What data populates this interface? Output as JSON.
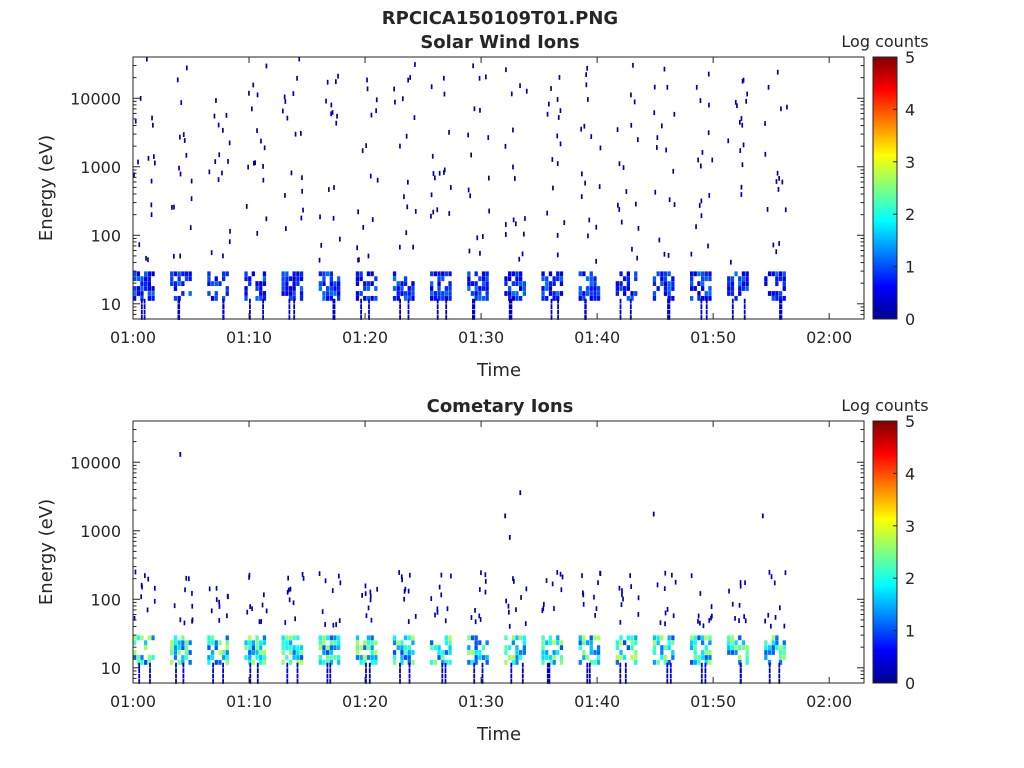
{
  "figure": {
    "title": "RPCICA150109T01.PNG"
  },
  "chart_data": [
    {
      "type": "heatmap",
      "title": "Solar Wind Ions",
      "xlabel": "Time",
      "ylabel": "Energy (eV)",
      "x_ticks": [
        "01:00",
        "01:10",
        "01:20",
        "01:30",
        "01:40",
        "01:50",
        "02:00"
      ],
      "x_tick_minutes": [
        0,
        10,
        20,
        30,
        40,
        50,
        60
      ],
      "xlim_minutes": [
        0,
        63
      ],
      "y_scale": "log",
      "y_ticks": [
        "10",
        "100",
        "1000",
        "10000"
      ],
      "y_tick_values": [
        10,
        100,
        1000,
        10000
      ],
      "ylim": [
        6,
        40000
      ],
      "colorbar": {
        "label": "Log counts",
        "ticks": [
          "0",
          "1",
          "2",
          "3",
          "4",
          "5"
        ],
        "range": [
          0,
          5
        ],
        "colormap": "jet"
      },
      "sweep_start_minutes": [
        0,
        3.2,
        6.4,
        9.6,
        12.8,
        16,
        19.2,
        22.4,
        25.6,
        28.8,
        32,
        35.2,
        38.4,
        41.6,
        44.8,
        48,
        51.2,
        54.4
      ],
      "sweep_duration_minutes": 1.9,
      "low_band_energy_ev": [
        12,
        30
      ],
      "low_band_peak_log_counts": 1.2,
      "sparse_dots_log_counts": 0.1,
      "sparse_dot_energy_range_ev": [
        40,
        38000
      ]
    },
    {
      "type": "heatmap",
      "title": "Cometary Ions",
      "xlabel": "Time",
      "ylabel": "Energy (eV)",
      "x_ticks": [
        "01:00",
        "01:10",
        "01:20",
        "01:30",
        "01:40",
        "01:50",
        "02:00"
      ],
      "x_tick_minutes": [
        0,
        10,
        20,
        30,
        40,
        50,
        60
      ],
      "xlim_minutes": [
        0,
        63
      ],
      "y_scale": "log",
      "y_ticks": [
        "10",
        "100",
        "1000",
        "10000"
      ],
      "y_tick_values": [
        10,
        100,
        1000,
        10000
      ],
      "ylim": [
        6,
        40000
      ],
      "colorbar": {
        "label": "Log counts",
        "ticks": [
          "0",
          "1",
          "2",
          "3",
          "4",
          "5"
        ],
        "range": [
          0,
          5
        ],
        "colormap": "jet"
      },
      "sweep_start_minutes": [
        0,
        3.2,
        6.4,
        9.6,
        12.8,
        16,
        19.2,
        22.4,
        25.6,
        28.8,
        32,
        35.2,
        38.4,
        41.6,
        44.8,
        48,
        51.2,
        54.4
      ],
      "sweep_duration_minutes": 1.9,
      "low_band_energy_ev": [
        12,
        30
      ],
      "low_band_peak_log_counts": 2.8,
      "sparse_dots_log_counts": 0.2,
      "sparse_dot_energy_range_ev": [
        40,
        250
      ],
      "isolated_points": [
        {
          "minute": 4.0,
          "energy_ev": 13000,
          "log_counts": 0.1
        },
        {
          "minute": 32.0,
          "energy_ev": 1650,
          "log_counts": 0.1
        },
        {
          "minute": 32.4,
          "energy_ev": 800,
          "log_counts": 0.1
        },
        {
          "minute": 33.3,
          "energy_ev": 3600,
          "log_counts": 0.1
        },
        {
          "minute": 44.8,
          "energy_ev": 1750,
          "log_counts": 0.1
        },
        {
          "minute": 54.2,
          "energy_ev": 1650,
          "log_counts": 0.1
        }
      ]
    }
  ]
}
